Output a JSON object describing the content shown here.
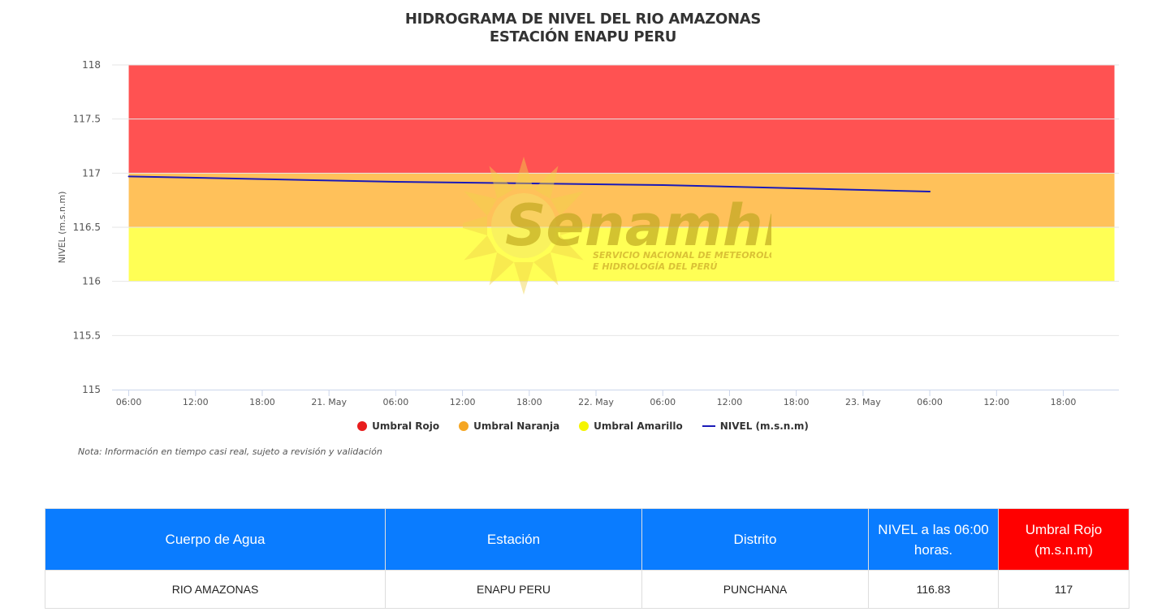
{
  "title_line1": "HIDROGRAMA DE NIVEL DEL RIO AMAZONAS",
  "title_line2": "ESTACIÓN ENAPU PERU",
  "watermark": {
    "brand": "Senamhi",
    "sub1": "SERVICIO NACIONAL DE METEOROLOGÍA",
    "sub2": "E HIDROLOGÍA DEL PERÚ"
  },
  "legend": [
    {
      "label": "Umbral Rojo",
      "color": "#e81d1d",
      "kind": "dot"
    },
    {
      "label": "Umbral Naranja",
      "color": "#f5a623",
      "kind": "dot"
    },
    {
      "label": "Umbral Amarillo",
      "color": "#f5f500",
      "kind": "dot"
    },
    {
      "label": "NIVEL (m.s.n.m)",
      "color": "#1a1ab8",
      "kind": "line"
    }
  ],
  "note": "Nota: Información en tiempo casi real, sujeto a revisión y validación",
  "chart_data": {
    "type": "line",
    "title": "HIDROGRAMA DE NIVEL DEL RIO AMAZONAS",
    "subtitle": "ESTACIÓN ENAPU PERU",
    "ylabel": "NIVEL (m.s.n.m)",
    "xlabel": "",
    "ylim": [
      115,
      118
    ],
    "yticks": [
      "118",
      "117.5",
      "117",
      "116.5",
      "116",
      "115.5",
      "115"
    ],
    "xticks": [
      "06:00",
      "12:00",
      "18:00",
      "21. May",
      "06:00",
      "12:00",
      "18:00",
      "22. May",
      "06:00",
      "12:00",
      "18:00",
      "23. May",
      "06:00",
      "12:00",
      "18:00"
    ],
    "xlim_hours": [
      -1.5,
      89
    ],
    "bands": [
      {
        "name": "Umbral Rojo",
        "from": 117,
        "to": 118,
        "color": "#ff5252"
      },
      {
        "name": "Umbral Naranja",
        "from": 116.5,
        "to": 117,
        "color": "#ffc15a"
      },
      {
        "name": "Umbral Amarillo",
        "from": 116,
        "to": 116.5,
        "color": "#ffff55"
      }
    ],
    "series": [
      {
        "name": "NIVEL (m.s.n.m)",
        "color": "#1a1ab8",
        "x": [
          "20 May 06:00",
          "21 May 06:00",
          "22 May 06:00",
          "23 May 06:00"
        ],
        "values": [
          116.97,
          116.92,
          116.89,
          116.83
        ]
      }
    ],
    "grid": true,
    "legend_position": "bottom"
  },
  "table": {
    "headers": [
      "Cuerpo de Agua",
      "Estación",
      "Distrito",
      "NIVEL a las 06:00 horas.",
      "Umbral Rojo (m.s.n.m)"
    ],
    "header_colors": [
      "#0a7cff",
      "#0a7cff",
      "#0a7cff",
      "#0a7cff",
      "#ff0000"
    ],
    "rows": [
      [
        "RIO AMAZONAS",
        "ENAPU PERU",
        "PUNCHANA",
        "116.83",
        "117"
      ]
    ]
  }
}
